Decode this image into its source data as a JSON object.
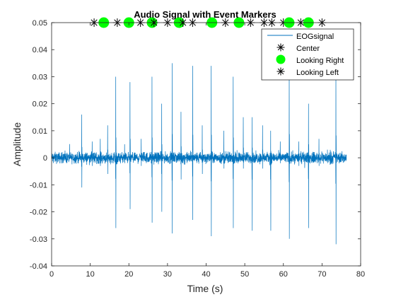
{
  "chart_data": {
    "type": "line",
    "title": "Audio Signal with Event Markers",
    "xlabel": "Time (s)",
    "ylabel": "Amplitude",
    "xlim": [
      0,
      80
    ],
    "ylim": [
      -0.04,
      0.05
    ],
    "xticks": [
      0,
      10,
      20,
      30,
      40,
      50,
      60,
      70,
      80
    ],
    "yticks": [
      -0.04,
      -0.03,
      -0.02,
      -0.01,
      0,
      0.01,
      0.02,
      0.03,
      0.04,
      0.05
    ],
    "xtick_labels": [
      "0",
      "10",
      "20",
      "30",
      "40",
      "50",
      "60",
      "70",
      "80"
    ],
    "ytick_labels": [
      "-0.04",
      "-0.03",
      "-0.02",
      "-0.01",
      "0",
      "0.01",
      "0.02",
      "0.03",
      "0.04",
      "0.05"
    ],
    "grid": false,
    "legend_position": "top-right",
    "signal": {
      "name": "EOGsignal",
      "color": "#0072BD",
      "x_range": [
        0,
        76.3
      ],
      "baseline_noise_amplitude": 0.002,
      "events": [
        {
          "t": 7.8,
          "peak": 0.016,
          "trough": -0.011
        },
        {
          "t": 10.5,
          "peak": 0.006,
          "trough": -0.003
        },
        {
          "t": 12.6,
          "peak": 0.007,
          "trough": -0.003
        },
        {
          "t": 14.5,
          "peak": 0.012,
          "trough": -0.006
        },
        {
          "t": 16.6,
          "peak": 0.03,
          "trough": -0.026
        },
        {
          "t": 18.9,
          "peak": 0.005,
          "trough": -0.002
        },
        {
          "t": 20.3,
          "peak": 0.028,
          "trough": -0.019
        },
        {
          "t": 23.2,
          "peak": 0.007,
          "trough": -0.003
        },
        {
          "t": 26.0,
          "peak": 0.03,
          "trough": -0.024
        },
        {
          "t": 28.5,
          "peak": 0.02,
          "trough": -0.02
        },
        {
          "t": 31.2,
          "peak": 0.035,
          "trough": -0.028
        },
        {
          "t": 33.5,
          "peak": 0.017,
          "trough": -0.008
        },
        {
          "t": 36.5,
          "peak": 0.034,
          "trough": -0.023
        },
        {
          "t": 39.0,
          "peak": 0.012,
          "trough": -0.006
        },
        {
          "t": 41.3,
          "peak": 0.034,
          "trough": -0.029
        },
        {
          "t": 44.6,
          "peak": 0.01,
          "trough": -0.004
        },
        {
          "t": 47.0,
          "peak": 0.03,
          "trough": -0.026
        },
        {
          "t": 49.6,
          "peak": 0.015,
          "trough": -0.004
        },
        {
          "t": 51.9,
          "peak": 0.015,
          "trough": -0.027
        },
        {
          "t": 54.6,
          "peak": 0.012,
          "trough": -0.004
        },
        {
          "t": 56.7,
          "peak": 0.01,
          "trough": -0.027
        },
        {
          "t": 59.2,
          "peak": 0.006,
          "trough": -0.002
        },
        {
          "t": 61.5,
          "peak": 0.035,
          "trough": -0.03
        },
        {
          "t": 64.0,
          "peak": 0.006,
          "trough": -0.003
        },
        {
          "t": 66.5,
          "peak": 0.02,
          "trough": -0.026
        },
        {
          "t": 69.2,
          "peak": 0.007,
          "trough": -0.003
        },
        {
          "t": 71.4,
          "peak": 0.003,
          "trough": -0.002
        },
        {
          "t": 73.6,
          "peak": 0.033,
          "trough": -0.032
        }
      ]
    },
    "markers": [
      {
        "name": "Center",
        "style": "asterisk",
        "color": "#000000",
        "y": 0.05,
        "x": [
          11,
          17,
          23,
          30,
          36.5,
          45,
          51.5,
          55,
          60,
          64.5,
          70
        ]
      },
      {
        "name": "Looking Right",
        "style": "circle",
        "color": "#00FF00",
        "y": 0.05,
        "x": [
          13.5,
          20,
          26,
          33,
          41.5,
          48.5,
          61.5,
          66.5
        ]
      },
      {
        "name": "Looking Left",
        "style": "asterisk",
        "color": "#000000",
        "y": 0.05,
        "x": [
          26.5,
          34,
          57
        ]
      }
    ],
    "legend": [
      {
        "label": "EOGsignal",
        "kind": "line",
        "color": "#0072BD"
      },
      {
        "label": "Center",
        "kind": "asterisk",
        "color": "#000000"
      },
      {
        "label": "Looking Right",
        "kind": "circle",
        "color": "#00FF00"
      },
      {
        "label": "Looking Left",
        "kind": "asterisk",
        "color": "#000000"
      }
    ]
  }
}
